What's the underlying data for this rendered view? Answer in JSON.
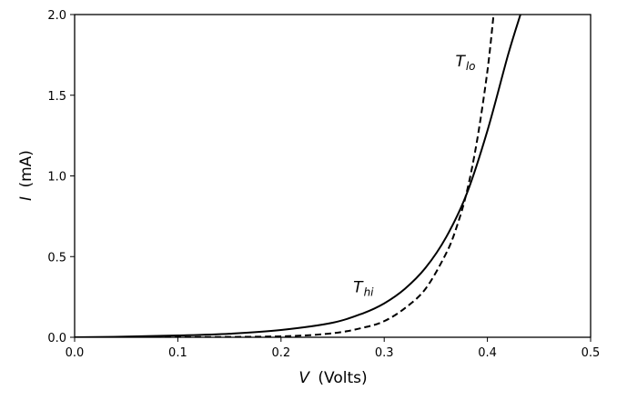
{
  "chart_data": {
    "type": "line",
    "xlabel": {
      "symbol": "V",
      "unit": "(Volts)"
    },
    "ylabel": {
      "symbol": "I",
      "unit": "(mA)"
    },
    "xlim": [
      0.0,
      0.5
    ],
    "ylim": [
      0.0,
      2.0
    ],
    "x_ticks": [
      "0.0",
      "0.1",
      "0.2",
      "0.3",
      "0.4",
      "0.5"
    ],
    "y_ticks": [
      "0.0",
      "0.5",
      "1.0",
      "1.5",
      "2.0"
    ],
    "grid": false,
    "legend": "none",
    "series": [
      {
        "line_style": "solid",
        "color": "#000000",
        "x": [
          0.0,
          0.05,
          0.1,
          0.15,
          0.2,
          0.25,
          0.28,
          0.3,
          0.32,
          0.34,
          0.36,
          0.38,
          0.4,
          0.42,
          0.432
        ],
        "y": [
          0.0,
          0.004,
          0.011,
          0.022,
          0.045,
          0.09,
          0.15,
          0.21,
          0.3,
          0.43,
          0.62,
          0.89,
          1.28,
          1.75,
          2.0
        ]
      },
      {
        "line_style": "dashed",
        "color": "#000000",
        "x": [
          0.0,
          0.1,
          0.2,
          0.25,
          0.28,
          0.3,
          0.32,
          0.34,
          0.36,
          0.37,
          0.38,
          0.39,
          0.4,
          0.406
        ],
        "y": [
          0.0,
          0.0005,
          0.006,
          0.025,
          0.06,
          0.1,
          0.18,
          0.3,
          0.52,
          0.68,
          0.9,
          1.22,
          1.65,
          2.0
        ]
      }
    ],
    "annotations": [
      {
        "base": "T",
        "sub": "hi",
        "x": 0.27,
        "y": 0.28
      },
      {
        "base": "T",
        "sub": "lo",
        "x": 0.369,
        "y": 1.68
      }
    ]
  }
}
